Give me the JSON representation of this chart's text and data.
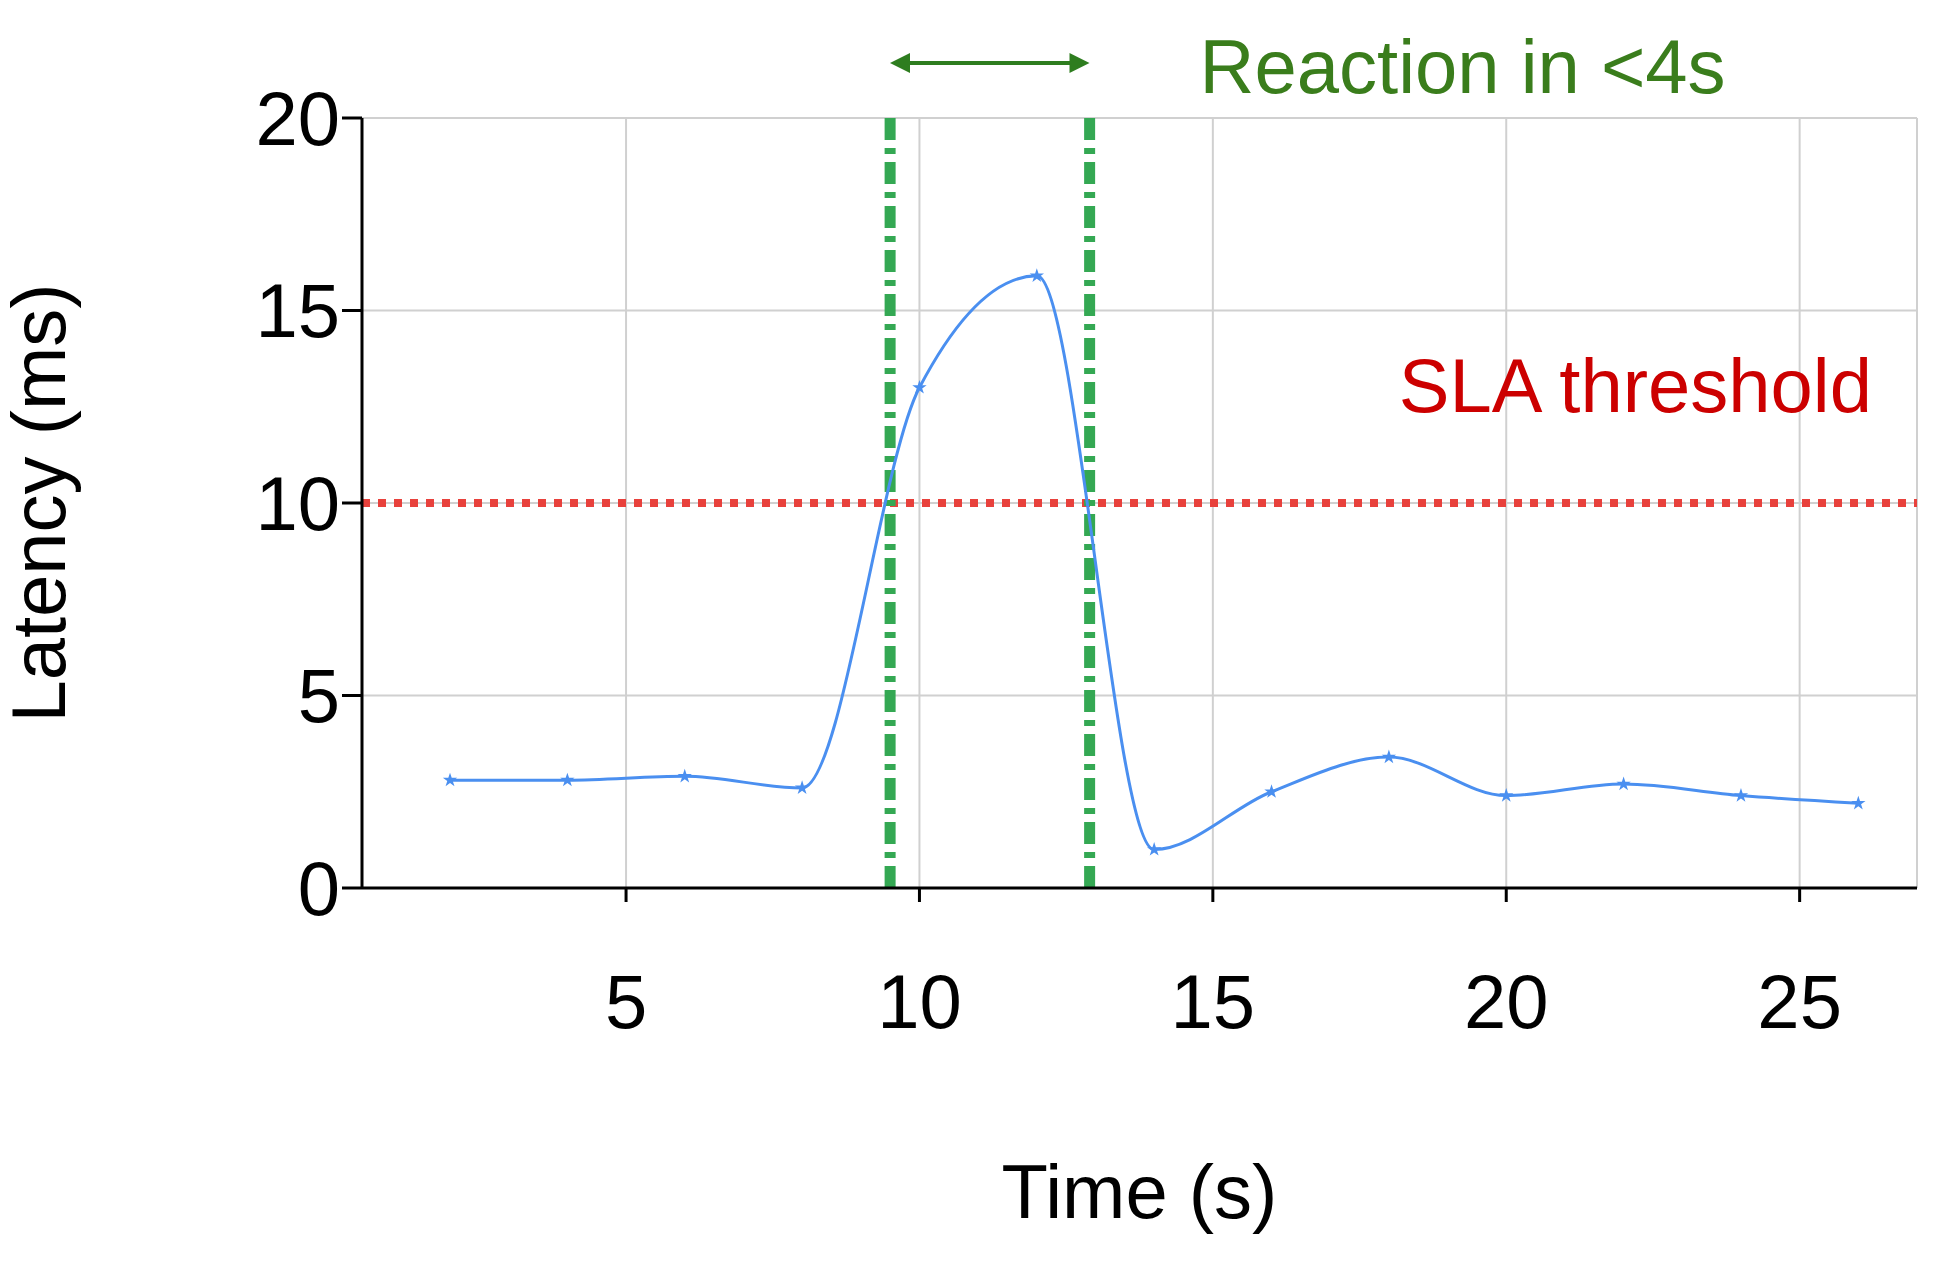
{
  "chart_data": {
    "type": "line",
    "xlabel": "Time (s)",
    "ylabel": "Latency (ms)",
    "x": [
      2,
      4,
      6,
      8,
      10,
      12,
      14,
      16,
      18,
      20,
      22,
      24,
      26
    ],
    "series": [
      {
        "color": "#4a8ff0",
        "values": [
          2.8,
          2.8,
          2.9,
          2.6,
          13,
          15.9,
          1.0,
          2.5,
          3.4,
          2.4,
          2.7,
          2.4,
          2.2
        ]
      }
    ],
    "xlim": [
      0.5,
      27
    ],
    "xticks": [
      5,
      10,
      15,
      20,
      25
    ],
    "ylim": [
      0,
      20
    ],
    "yticks": [
      0,
      5,
      10,
      15,
      20
    ],
    "grid": true,
    "marker": "star",
    "ref_lines": [
      {
        "axis": "y",
        "value": 10,
        "label": "SLA threshold",
        "color": "#e8413c",
        "line_style": "dotted"
      },
      {
        "axis": "x",
        "value": 9.5,
        "color": "#34a853",
        "line_style": "dashdot"
      },
      {
        "axis": "x",
        "value": 12.9,
        "color": "#34a853",
        "line_style": "dashdot"
      }
    ],
    "annotations": [
      "Reaction in <4s"
    ]
  }
}
